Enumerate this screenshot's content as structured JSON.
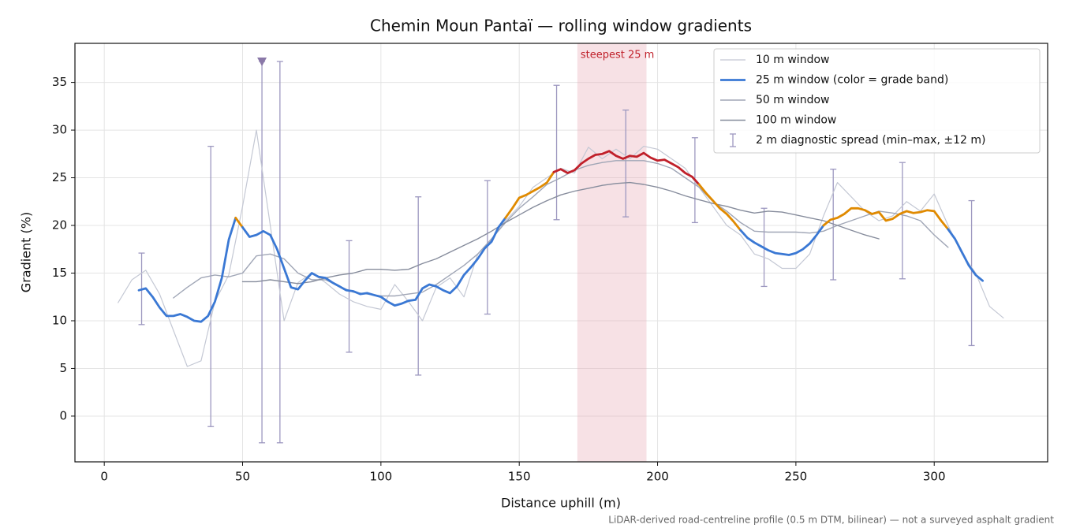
{
  "chart_data": {
    "type": "line",
    "title": "Chemin Moun Pantaï — rolling window gradients",
    "x_label": "Distance uphill (m)",
    "y_label": "Gradient (%)",
    "footnote": "LiDAR-derived road-centreline profile (0.5 m DTM, bilinear) — not a surveyed asphalt gradient",
    "xlim": [
      -10.6,
      341
    ],
    "ylim": [
      -4.8,
      39.1
    ],
    "xticks": [
      0,
      50,
      100,
      150,
      200,
      250,
      300
    ],
    "yticks": [
      0,
      5,
      10,
      15,
      20,
      25,
      30,
      35
    ],
    "grid": true,
    "legend": "upper right",
    "highlight": {
      "x": [
        171,
        196
      ],
      "label": "steepest 25 m",
      "color": "#e8aab4",
      "label_color": "#c0202a"
    },
    "series": [
      {
        "name": "10 m window",
        "color": "#c4c8d4",
        "width": 1.2,
        "x": [
          5,
          10,
          15,
          20,
          25,
          30,
          35,
          40,
          45,
          50,
          55,
          60,
          65,
          70,
          75,
          80,
          85,
          90,
          95,
          100,
          105,
          110,
          115,
          120,
          125,
          130,
          135,
          140,
          145,
          150,
          155,
          160,
          165,
          170,
          175,
          180,
          185,
          190,
          195,
          200,
          205,
          210,
          215,
          220,
          225,
          230,
          235,
          240,
          245,
          250,
          255,
          260,
          265,
          270,
          275,
          280,
          285,
          290,
          295,
          300,
          305,
          310,
          315,
          320,
          325
        ],
        "values": [
          11.9,
          14.3,
          15.3,
          12.8,
          9.0,
          5.2,
          5.8,
          12.0,
          14.8,
          22.0,
          30.0,
          20.0,
          10.0,
          14.0,
          15.0,
          14.0,
          12.8,
          12.0,
          11.5,
          11.2,
          13.8,
          12.0,
          10.0,
          13.5,
          14.5,
          12.5,
          17.0,
          18.5,
          20.5,
          22.0,
          24.0,
          25.0,
          26.0,
          25.5,
          28.2,
          27.0,
          28.0,
          27.0,
          28.3,
          28.0,
          27.0,
          26.0,
          24.0,
          22.0,
          20.0,
          19.0,
          17.0,
          16.5,
          15.5,
          15.5,
          17.0,
          21.0,
          24.5,
          23.0,
          21.5,
          20.5,
          21.0,
          22.5,
          21.5,
          23.3,
          20.0,
          17.0,
          15.0,
          11.5,
          10.3
        ]
      },
      {
        "name": "25 m window (color = grade band)",
        "color": "#3a78d4",
        "width": 2.8,
        "grade_bands": [
          {
            "below": 20,
            "color": "#3a78d4"
          },
          {
            "below": 25,
            "color": "#e08a00"
          },
          {
            "color": "#c0202a"
          }
        ],
        "x": [
          12.5,
          15,
          17.5,
          20,
          22.5,
          25,
          27.5,
          30,
          32.5,
          35,
          37.5,
          40,
          42.5,
          45,
          47.5,
          50,
          52.5,
          55,
          57.5,
          60,
          62.5,
          65,
          67.5,
          70,
          72.5,
          75,
          77.5,
          80,
          82.5,
          85,
          87.5,
          90,
          92.5,
          95,
          97.5,
          100,
          102.5,
          105,
          107.5,
          110,
          112.5,
          115,
          117.5,
          120,
          122.5,
          125,
          127.5,
          130,
          132.5,
          135,
          137.5,
          140,
          142.5,
          145,
          147.5,
          150,
          152.5,
          155,
          157.5,
          160,
          162.5,
          165,
          167.5,
          170,
          172.5,
          175,
          177.5,
          180,
          182.5,
          185,
          187.5,
          190,
          192.5,
          195,
          197.5,
          200,
          202.5,
          205,
          207.5,
          210,
          212.5,
          215,
          217.5,
          220,
          222.5,
          225,
          227.5,
          230,
          232.5,
          235,
          237.5,
          240,
          242.5,
          245,
          247.5,
          250,
          252.5,
          255,
          257.5,
          260,
          262.5,
          265,
          267.5,
          270,
          272.5,
          275,
          277.5,
          280,
          282.5,
          285,
          287.5,
          290,
          292.5,
          295,
          297.5,
          300,
          302.5,
          305,
          307.5,
          310,
          312.5,
          315,
          317.5
        ],
        "values": [
          13.2,
          13.4,
          12.5,
          11.4,
          10.5,
          10.5,
          10.7,
          10.4,
          10.0,
          9.9,
          10.5,
          12.0,
          14.5,
          18.5,
          20.8,
          19.8,
          18.8,
          19.0,
          19.4,
          19.0,
          17.5,
          15.5,
          13.5,
          13.3,
          14.2,
          15.0,
          14.6,
          14.5,
          14.0,
          13.6,
          13.2,
          13.1,
          12.8,
          12.9,
          12.7,
          12.5,
          12.0,
          11.6,
          11.8,
          12.1,
          12.2,
          13.4,
          13.8,
          13.6,
          13.2,
          12.9,
          13.6,
          14.8,
          15.6,
          16.5,
          17.6,
          18.3,
          19.8,
          20.8,
          21.8,
          22.9,
          23.2,
          23.6,
          24.0,
          24.5,
          25.6,
          25.9,
          25.5,
          25.8,
          26.5,
          27.0,
          27.4,
          27.5,
          27.8,
          27.3,
          27.0,
          27.3,
          27.2,
          27.6,
          27.1,
          26.8,
          26.9,
          26.5,
          26.1,
          25.5,
          25.1,
          24.3,
          23.4,
          22.6,
          21.8,
          21.2,
          20.4,
          19.5,
          18.7,
          18.2,
          17.8,
          17.4,
          17.1,
          17.0,
          16.9,
          17.1,
          17.5,
          18.1,
          19.0,
          20.0,
          20.6,
          20.8,
          21.2,
          21.8,
          21.8,
          21.6,
          21.2,
          21.4,
          20.5,
          20.7,
          21.2,
          21.5,
          21.3,
          21.4,
          21.6,
          21.5,
          20.5,
          19.6,
          18.6,
          17.2,
          15.8,
          14.8,
          14.2
        ]
      },
      {
        "name": "50 m window",
        "color": "#a0a6b6",
        "width": 1.4,
        "x": [
          25,
          30,
          35,
          40,
          45,
          50,
          55,
          60,
          65,
          70,
          75,
          80,
          85,
          90,
          95,
          100,
          105,
          110,
          115,
          120,
          125,
          130,
          135,
          140,
          145,
          150,
          155,
          160,
          165,
          170,
          175,
          180,
          185,
          190,
          195,
          200,
          205,
          210,
          215,
          220,
          225,
          230,
          235,
          240,
          245,
          250,
          255,
          260,
          265,
          270,
          275,
          280,
          285,
          290,
          295,
          300,
          305
        ],
        "values": [
          12.4,
          13.5,
          14.5,
          14.8,
          14.6,
          15.0,
          16.8,
          17.0,
          16.5,
          15.0,
          14.3,
          14.3,
          13.6,
          13.0,
          12.8,
          12.6,
          12.6,
          12.8,
          13.0,
          13.8,
          14.8,
          15.8,
          17.0,
          18.6,
          20.3,
          21.8,
          23.0,
          24.3,
          25.0,
          25.8,
          26.3,
          26.6,
          26.8,
          26.8,
          26.8,
          26.5,
          26.0,
          25.0,
          24.0,
          22.5,
          21.5,
          20.3,
          19.4,
          19.3,
          19.3,
          19.3,
          19.2,
          19.4,
          20.0,
          20.5,
          21.0,
          21.5,
          21.3,
          21.0,
          20.5,
          19.0,
          17.7
        ]
      },
      {
        "name": "100 m window",
        "color": "#868c9c",
        "width": 1.4,
        "x": [
          50,
          55,
          60,
          65,
          70,
          75,
          80,
          85,
          90,
          95,
          100,
          105,
          110,
          115,
          120,
          125,
          130,
          135,
          140,
          145,
          150,
          155,
          160,
          165,
          170,
          175,
          180,
          185,
          190,
          195,
          200,
          205,
          210,
          215,
          220,
          225,
          230,
          235,
          240,
          245,
          250,
          255,
          260,
          265,
          270,
          275,
          280
        ],
        "values": [
          14.1,
          14.1,
          14.3,
          14.1,
          13.9,
          14.1,
          14.5,
          14.8,
          15.0,
          15.4,
          15.4,
          15.3,
          15.4,
          16.0,
          16.5,
          17.2,
          17.9,
          18.6,
          19.4,
          20.3,
          21.1,
          21.9,
          22.6,
          23.2,
          23.6,
          23.9,
          24.2,
          24.4,
          24.5,
          24.3,
          24.0,
          23.6,
          23.1,
          22.7,
          22.3,
          22.0,
          21.6,
          21.3,
          21.5,
          21.4,
          21.1,
          20.8,
          20.5,
          20.0,
          19.5,
          19.0,
          18.6
        ]
      }
    ],
    "spread": {
      "name": "2 m diagnostic spread (min–max, ±12 m)",
      "color": "#9d98c0",
      "x": [
        13.5,
        38.5,
        57,
        63.5,
        88.5,
        113.5,
        138.5,
        163.5,
        188.5,
        213.5,
        238.5,
        263.5,
        288.5,
        313.5
      ],
      "low": [
        9.6,
        -1.1,
        -2.8,
        -2.8,
        6.7,
        4.3,
        10.7,
        20.6,
        20.9,
        20.3,
        13.6,
        14.3,
        14.4,
        7.4
      ],
      "high": [
        17.1,
        28.3,
        37.2,
        37.2,
        18.4,
        23.0,
        24.7,
        34.7,
        32.1,
        29.2,
        21.8,
        25.9,
        26.6,
        22.6
      ]
    },
    "peak_marker": {
      "x": 57,
      "y": 37.2,
      "color": "#8a78a8"
    }
  }
}
